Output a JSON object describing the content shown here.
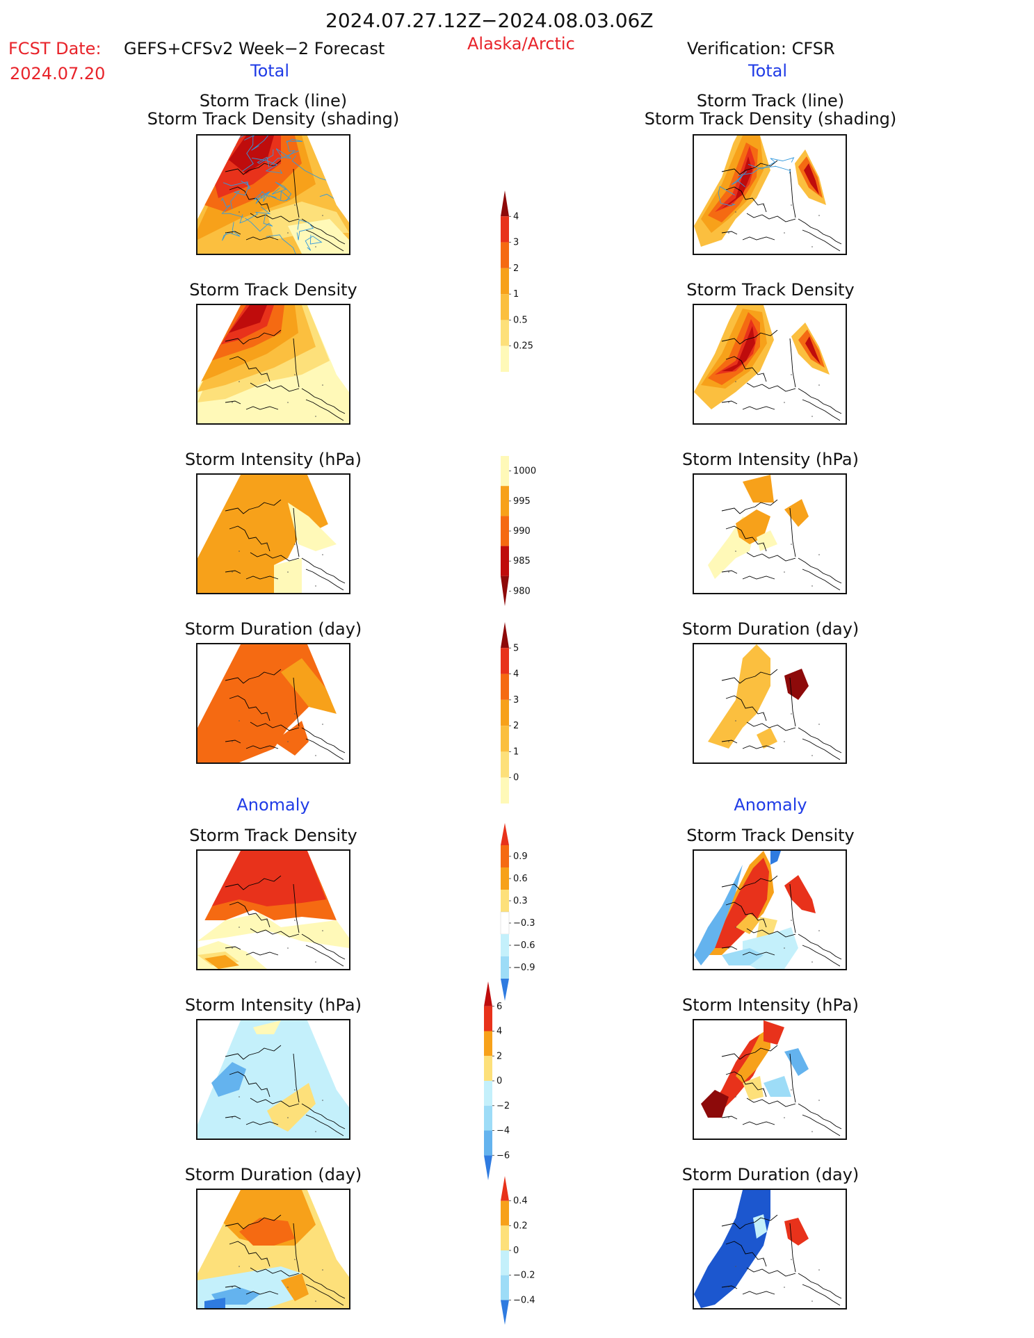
{
  "header": {
    "date_range": "2024.07.27.12Z−2024.08.03.06Z",
    "fcst_label": "FCST Date:",
    "fcst_model": "GEFS+CFSv2 Week−2 Forecast",
    "fcst_date": "2024.07.20",
    "region": "Alaska/Arctic",
    "verification": "Verification: CFSR"
  },
  "sections": {
    "total": "Total",
    "anomaly": "Anomaly"
  },
  "titles": {
    "track_line": "Storm Track (line)",
    "track_density_shading": "Storm Track Density (shading)",
    "track_density": "Storm Track Density",
    "intensity": "Storm Intensity (hPa)",
    "duration": "Storm Duration (day)"
  },
  "colors": {
    "c1": "#fff9b8",
    "c2": "#fde07a",
    "c3": "#fbbf3f",
    "c4": "#f7a11a",
    "c5": "#f56a12",
    "c6": "#e8321b",
    "c7": "#bf0c0c",
    "c8": "#8d0a0a",
    "n1": "#c4f0fb",
    "n2": "#9ddcf7",
    "n3": "#64b3ee",
    "n4": "#2f7be0",
    "n5": "#1c57cf",
    "track_line": "#3399dd",
    "coast": "#000000"
  },
  "chart_data": [
    {
      "type": "heatmap",
      "panel": "forecast-total-track-density-with-tracks",
      "title": "Storm Track (line) / Storm Track Density (shading)",
      "colorbar": "density"
    },
    {
      "type": "heatmap",
      "panel": "cfsr-total-track-density-with-tracks",
      "title": "Storm Track (line) / Storm Track Density (shading)",
      "colorbar": "density"
    },
    {
      "type": "heatmap",
      "panel": "forecast-total-track-density",
      "title": "Storm Track Density",
      "colorbar": "density"
    },
    {
      "type": "heatmap",
      "panel": "cfsr-total-track-density",
      "title": "Storm Track Density",
      "colorbar": "density"
    },
    {
      "type": "heatmap",
      "panel": "forecast-total-intensity",
      "title": "Storm Intensity (hPa)",
      "colorbar": "intensity"
    },
    {
      "type": "heatmap",
      "panel": "cfsr-total-intensity",
      "title": "Storm Intensity (hPa)",
      "colorbar": "intensity"
    },
    {
      "type": "heatmap",
      "panel": "forecast-total-duration",
      "title": "Storm Duration (day)",
      "colorbar": "duration"
    },
    {
      "type": "heatmap",
      "panel": "cfsr-total-duration",
      "title": "Storm Duration (day)",
      "colorbar": "duration"
    },
    {
      "type": "heatmap",
      "panel": "forecast-anomaly-track-density",
      "title": "Storm Track Density",
      "colorbar": "density_anomaly"
    },
    {
      "type": "heatmap",
      "panel": "cfsr-anomaly-track-density",
      "title": "Storm Track Density",
      "colorbar": "density_anomaly"
    },
    {
      "type": "heatmap",
      "panel": "forecast-anomaly-intensity",
      "title": "Storm Intensity (hPa)",
      "colorbar": "intensity_anomaly"
    },
    {
      "type": "heatmap",
      "panel": "cfsr-anomaly-intensity",
      "title": "Storm Intensity (hPa)",
      "colorbar": "intensity_anomaly"
    },
    {
      "type": "heatmap",
      "panel": "forecast-anomaly-duration",
      "title": "Storm Duration (day)",
      "colorbar": "duration_anomaly"
    },
    {
      "type": "heatmap",
      "panel": "cfsr-anomaly-duration",
      "title": "Storm Duration (day)",
      "colorbar": "duration_anomaly"
    }
  ],
  "colorbars": {
    "density": {
      "ticks": [
        "4",
        "3",
        "2",
        "1",
        "0.5",
        "0.25"
      ],
      "colors": [
        "c8",
        "c6",
        "c5",
        "c4",
        "c3",
        "c2",
        "c1"
      ],
      "extend": "top"
    },
    "intensity": {
      "ticks": [
        "1000",
        "995",
        "990",
        "985",
        "980"
      ],
      "colors": [
        "c1",
        "c4",
        "c5",
        "c7",
        "c8"
      ],
      "extend": "bottom"
    },
    "duration": {
      "ticks": [
        "5",
        "4",
        "3",
        "2",
        "1",
        "0"
      ],
      "colors": [
        "c8",
        "c6",
        "c5",
        "c4",
        "c3",
        "c2",
        "c1"
      ],
      "extend": "top"
    },
    "density_anomaly": {
      "ticks": [
        "0.9",
        "0.6",
        "0.3",
        "−0.3",
        "−0.6",
        "−0.9"
      ],
      "colors": [
        "c6",
        "c5",
        "c4",
        "c2",
        "white",
        "n1",
        "n2",
        "n4"
      ],
      "extend": "both"
    },
    "intensity_anomaly": {
      "ticks": [
        "6",
        "4",
        "2",
        "0",
        "−2",
        "−4",
        "−6"
      ],
      "colors": [
        "c7",
        "c6",
        "c4",
        "c2",
        "n1",
        "n2",
        "n3",
        "n4"
      ],
      "extend": "both"
    },
    "duration_anomaly": {
      "ticks": [
        "0.4",
        "0.2",
        "0",
        "−0.2",
        "−0.4"
      ],
      "colors": [
        "c6",
        "c4",
        "c2",
        "n1",
        "n2",
        "n4"
      ],
      "extend": "both"
    }
  }
}
